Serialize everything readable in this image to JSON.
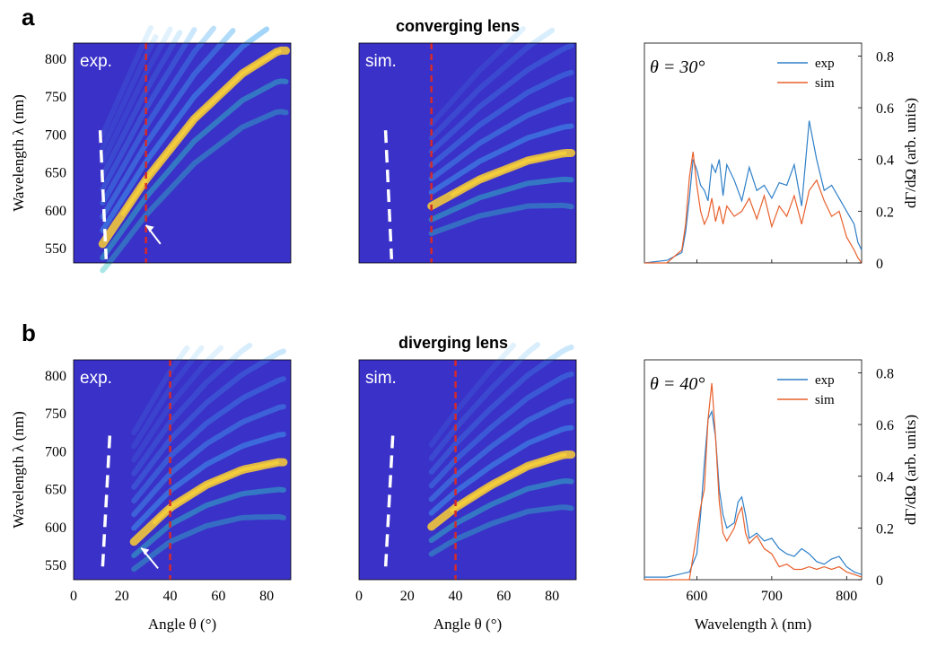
{
  "panels": [
    {
      "letter": "a",
      "title": "converging lens"
    },
    {
      "letter": "b",
      "title": "diverging lens"
    }
  ],
  "maps": {
    "exp_label": "exp.",
    "sim_label": "sim.",
    "ylabel": "Wavelength λ (nm)",
    "xlabel": "Angle θ (°)",
    "yticks": [
      "800",
      "750",
      "700",
      "650",
      "600",
      "550"
    ],
    "xticks": [
      "0",
      "20",
      "40",
      "60",
      "80"
    ]
  },
  "spectra": {
    "ylabel": "dΓ/dΩ (arb. units)",
    "xlabel": "Wavelength λ (nm)",
    "yticks": [
      "0.8",
      "0.6",
      "0.4",
      "0.2",
      "0"
    ],
    "xticks": [
      "600",
      "700",
      "800"
    ],
    "legend": [
      "exp",
      "sim"
    ]
  },
  "colors": {
    "background": "#3a31c8",
    "exp_line": "#2f7fc8",
    "sim_line": "#e8602c",
    "cut_line": "#d62a2a",
    "fit_line": "#ffffff"
  },
  "chart_data": [
    {
      "type": "heatmap",
      "panel": "a",
      "label": "exp.",
      "xlabel": "Angle θ (°)",
      "ylabel": "Wavelength λ (nm)",
      "xlim": [
        0,
        90
      ],
      "ylim": [
        530,
        820
      ],
      "cut_angle": 30,
      "bright_band": {
        "center_nm": [
          [
            12,
            555
          ],
          [
            30,
            640
          ],
          [
            50,
            720
          ],
          [
            70,
            780
          ],
          [
            85,
            810
          ]
        ]
      }
    },
    {
      "type": "heatmap",
      "panel": "a",
      "label": "sim.",
      "xlabel": "Angle θ (°)",
      "ylabel": "Wavelength λ (nm)",
      "xlim": [
        0,
        90
      ],
      "ylim": [
        530,
        820
      ],
      "cut_angle": 30,
      "bright_band": {
        "center_nm": [
          [
            30,
            605
          ],
          [
            50,
            640
          ],
          [
            70,
            665
          ],
          [
            85,
            675
          ]
        ]
      }
    },
    {
      "type": "line",
      "panel": "a",
      "annotation": "θ = 30°",
      "xlabel": "Wavelength λ (nm)",
      "ylabel": "dΓ/dΩ (arb. units)",
      "xlim": [
        530,
        820
      ],
      "ylim": [
        0,
        0.85
      ],
      "series": [
        {
          "name": "exp",
          "x": [
            530,
            560,
            580,
            585,
            590,
            595,
            600,
            605,
            610,
            615,
            620,
            625,
            630,
            635,
            640,
            650,
            660,
            670,
            680,
            690,
            700,
            710,
            720,
            730,
            740,
            750,
            760,
            770,
            780,
            790,
            800,
            810,
            815,
            820
          ],
          "y": [
            0.0,
            0.01,
            0.04,
            0.12,
            0.25,
            0.4,
            0.36,
            0.3,
            0.28,
            0.24,
            0.38,
            0.35,
            0.4,
            0.26,
            0.38,
            0.32,
            0.24,
            0.37,
            0.28,
            0.3,
            0.25,
            0.31,
            0.3,
            0.38,
            0.22,
            0.55,
            0.4,
            0.28,
            0.3,
            0.25,
            0.2,
            0.15,
            0.08,
            0.05
          ]
        },
        {
          "name": "sim",
          "x": [
            530,
            560,
            580,
            585,
            590,
            595,
            600,
            605,
            610,
            615,
            620,
            625,
            630,
            635,
            640,
            650,
            660,
            670,
            680,
            690,
            700,
            710,
            720,
            730,
            740,
            750,
            760,
            770,
            780,
            790,
            800,
            810,
            815,
            820
          ],
          "y": [
            0.0,
            0.0,
            0.05,
            0.15,
            0.33,
            0.43,
            0.3,
            0.2,
            0.15,
            0.18,
            0.25,
            0.16,
            0.22,
            0.15,
            0.22,
            0.18,
            0.2,
            0.25,
            0.17,
            0.26,
            0.14,
            0.22,
            0.18,
            0.26,
            0.15,
            0.28,
            0.32,
            0.24,
            0.18,
            0.2,
            0.1,
            0.05,
            0.02,
            0.0
          ]
        }
      ]
    },
    {
      "type": "heatmap",
      "panel": "b",
      "label": "exp.",
      "xlabel": "Angle θ (°)",
      "ylabel": "Wavelength λ (nm)",
      "xlim": [
        0,
        90
      ],
      "ylim": [
        530,
        820
      ],
      "cut_angle": 40,
      "bright_band": {
        "center_nm": [
          [
            25,
            580
          ],
          [
            40,
            625
          ],
          [
            55,
            655
          ],
          [
            70,
            675
          ],
          [
            85,
            685
          ]
        ]
      }
    },
    {
      "type": "heatmap",
      "panel": "b",
      "label": "sim.",
      "xlabel": "Angle θ (°)",
      "ylabel": "Wavelength λ (nm)",
      "xlim": [
        0,
        90
      ],
      "ylim": [
        530,
        820
      ],
      "cut_angle": 40,
      "bright_band": {
        "center_nm": [
          [
            30,
            600
          ],
          [
            40,
            625
          ],
          [
            55,
            655
          ],
          [
            70,
            680
          ],
          [
            85,
            695
          ]
        ]
      }
    },
    {
      "type": "line",
      "panel": "b",
      "annotation": "θ = 40°",
      "xlabel": "Wavelength λ (nm)",
      "ylabel": "dΓ/dΩ (arb. units)",
      "xlim": [
        530,
        820
      ],
      "ylim": [
        0,
        0.85
      ],
      "series": [
        {
          "name": "exp",
          "x": [
            530,
            560,
            590,
            600,
            605,
            610,
            615,
            620,
            625,
            630,
            635,
            640,
            650,
            655,
            660,
            665,
            670,
            680,
            690,
            700,
            710,
            720,
            730,
            740,
            750,
            760,
            770,
            780,
            790,
            800,
            810,
            820
          ],
          "y": [
            0.01,
            0.01,
            0.03,
            0.1,
            0.25,
            0.45,
            0.62,
            0.65,
            0.55,
            0.35,
            0.25,
            0.2,
            0.22,
            0.3,
            0.32,
            0.25,
            0.16,
            0.18,
            0.15,
            0.16,
            0.12,
            0.1,
            0.09,
            0.12,
            0.1,
            0.07,
            0.06,
            0.08,
            0.09,
            0.05,
            0.03,
            0.02
          ]
        },
        {
          "name": "sim",
          "x": [
            530,
            560,
            590,
            600,
            605,
            610,
            615,
            620,
            625,
            630,
            635,
            640,
            650,
            655,
            660,
            665,
            670,
            680,
            690,
            700,
            710,
            720,
            730,
            740,
            750,
            760,
            770,
            780,
            790,
            800,
            810,
            820
          ],
          "y": [
            0.0,
            0.0,
            0.0,
            0.18,
            0.28,
            0.35,
            0.62,
            0.76,
            0.55,
            0.3,
            0.18,
            0.15,
            0.2,
            0.25,
            0.28,
            0.18,
            0.14,
            0.17,
            0.12,
            0.1,
            0.05,
            0.06,
            0.04,
            0.04,
            0.05,
            0.04,
            0.05,
            0.04,
            0.05,
            0.03,
            0.02,
            0.01
          ]
        }
      ]
    }
  ]
}
